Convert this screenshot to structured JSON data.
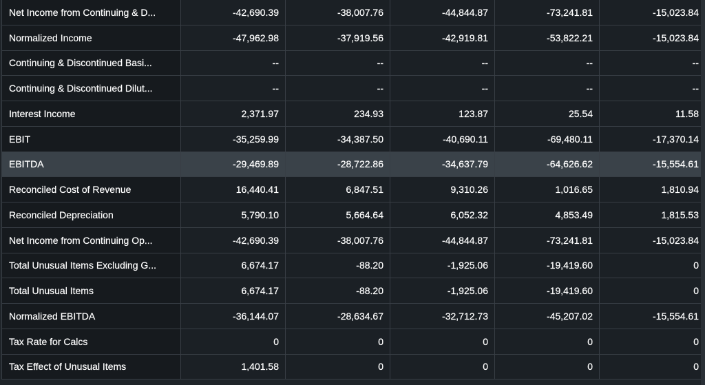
{
  "rows": [
    {
      "label": "Net Income from Continuing & D...",
      "values": [
        "-42,690.39",
        "-38,007.76",
        "-44,844.87",
        "-73,241.81",
        "-15,023.84"
      ]
    },
    {
      "label": "Normalized Income",
      "values": [
        "-47,962.98",
        "-37,919.56",
        "-42,919.81",
        "-53,822.21",
        "-15,023.84"
      ]
    },
    {
      "label": "Continuing & Discontinued Basi...",
      "values": [
        "--",
        "--",
        "--",
        "--",
        "--"
      ]
    },
    {
      "label": "Continuing & Discontinued Dilut...",
      "values": [
        "--",
        "--",
        "--",
        "--",
        "--"
      ]
    },
    {
      "label": "Interest Income",
      "values": [
        "2,371.97",
        "234.93",
        "123.87",
        "25.54",
        "11.58"
      ]
    },
    {
      "label": "EBIT",
      "values": [
        "-35,259.99",
        "-34,387.50",
        "-40,690.11",
        "-69,480.11",
        "-17,370.14"
      ]
    },
    {
      "label": "EBITDA",
      "values": [
        "-29,469.89",
        "-28,722.86",
        "-34,637.79",
        "-64,626.62",
        "-15,554.61"
      ]
    },
    {
      "label": "Reconciled Cost of Revenue",
      "values": [
        "16,440.41",
        "6,847.51",
        "9,310.26",
        "1,016.65",
        "1,810.94"
      ]
    },
    {
      "label": "Reconciled Depreciation",
      "values": [
        "5,790.10",
        "5,664.64",
        "6,052.32",
        "4,853.49",
        "1,815.53"
      ]
    },
    {
      "label": "Net Income from Continuing Op...",
      "values": [
        "-42,690.39",
        "-38,007.76",
        "-44,844.87",
        "-73,241.81",
        "-15,023.84"
      ]
    },
    {
      "label": "Total Unusual Items Excluding G...",
      "values": [
        "6,674.17",
        "-88.20",
        "-1,925.06",
        "-19,419.60",
        "0"
      ]
    },
    {
      "label": "Total Unusual Items",
      "values": [
        "6,674.17",
        "-88.20",
        "-1,925.06",
        "-19,419.60",
        "0"
      ]
    },
    {
      "label": "Normalized EBITDA",
      "values": [
        "-36,144.07",
        "-28,634.67",
        "-32,712.73",
        "-45,207.02",
        "-15,554.61"
      ]
    },
    {
      "label": "Tax Rate for Calcs",
      "values": [
        "0",
        "0",
        "0",
        "0",
        "0"
      ]
    },
    {
      "label": "Tax Effect of Unusual Items",
      "values": [
        "1,401.58",
        "0",
        "0",
        "0",
        "0"
      ]
    }
  ],
  "highlighted_row": "EBITDA",
  "colors": {
    "background": "#1f2429",
    "label_cell": "#161a1e",
    "value_cell": "#1b2025",
    "highlight_row": "#3a4249",
    "grid_line": "#383e45",
    "text": "#ffffff"
  }
}
